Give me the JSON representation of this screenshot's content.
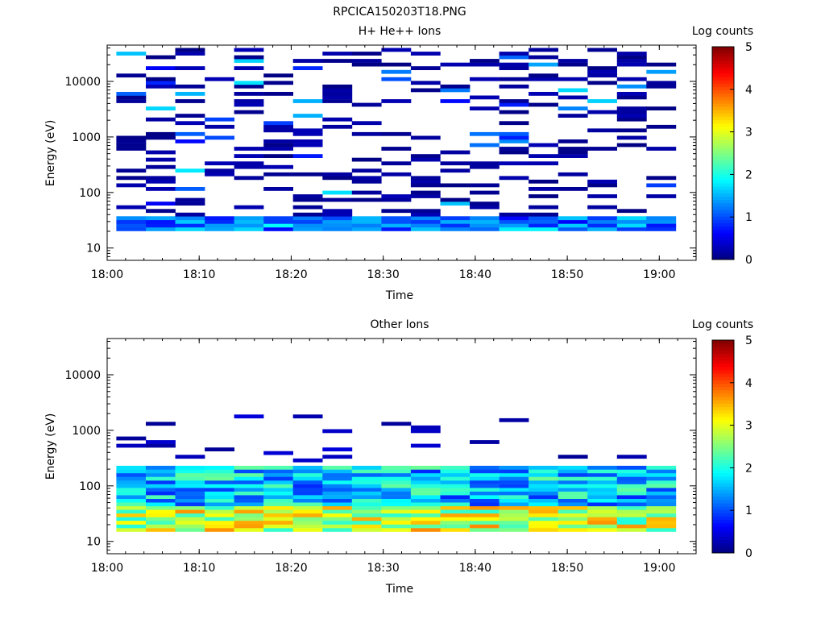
{
  "figure_title": "RPCICA150203T18.PNG",
  "chart_data": [
    {
      "type": "heatmap",
      "title": "H+ He++ Ions",
      "xlabel": "Time",
      "ylabel": "Energy (eV)",
      "x_ticks": [
        "18:00",
        "18:10",
        "18:20",
        "18:30",
        "18:40",
        "18:50",
        "19:00"
      ],
      "x_start_minutes": 1,
      "x_bin_minutes": 3.2,
      "y_scale": "log",
      "ylim": [
        6,
        45000
      ],
      "y_ticks": [
        "10",
        "100",
        "1000",
        "10000"
      ],
      "colorbar": {
        "label": "Log counts",
        "range": [
          0,
          5
        ],
        "ticks": [
          "0",
          "1",
          "2",
          "3",
          "4",
          "5"
        ]
      },
      "seed": 17,
      "n_time_bins": 19,
      "n_energy_bins": 52,
      "profile": "hplus"
    },
    {
      "type": "heatmap",
      "title": "Other Ions",
      "xlabel": "Time",
      "ylabel": "Energy (eV)",
      "x_ticks": [
        "18:00",
        "18:10",
        "18:20",
        "18:30",
        "18:40",
        "18:50",
        "19:00"
      ],
      "x_start_minutes": 1,
      "x_bin_minutes": 3.2,
      "y_scale": "log",
      "ylim": [
        6,
        45000
      ],
      "y_ticks": [
        "10",
        "100",
        "1000",
        "10000"
      ],
      "colorbar": {
        "label": "Log counts",
        "range": [
          0,
          5
        ],
        "ticks": [
          "0",
          "1",
          "2",
          "3",
          "4",
          "5"
        ]
      },
      "seed": 91,
      "n_time_bins": 19,
      "n_energy_bins": 52,
      "profile": "other"
    }
  ]
}
